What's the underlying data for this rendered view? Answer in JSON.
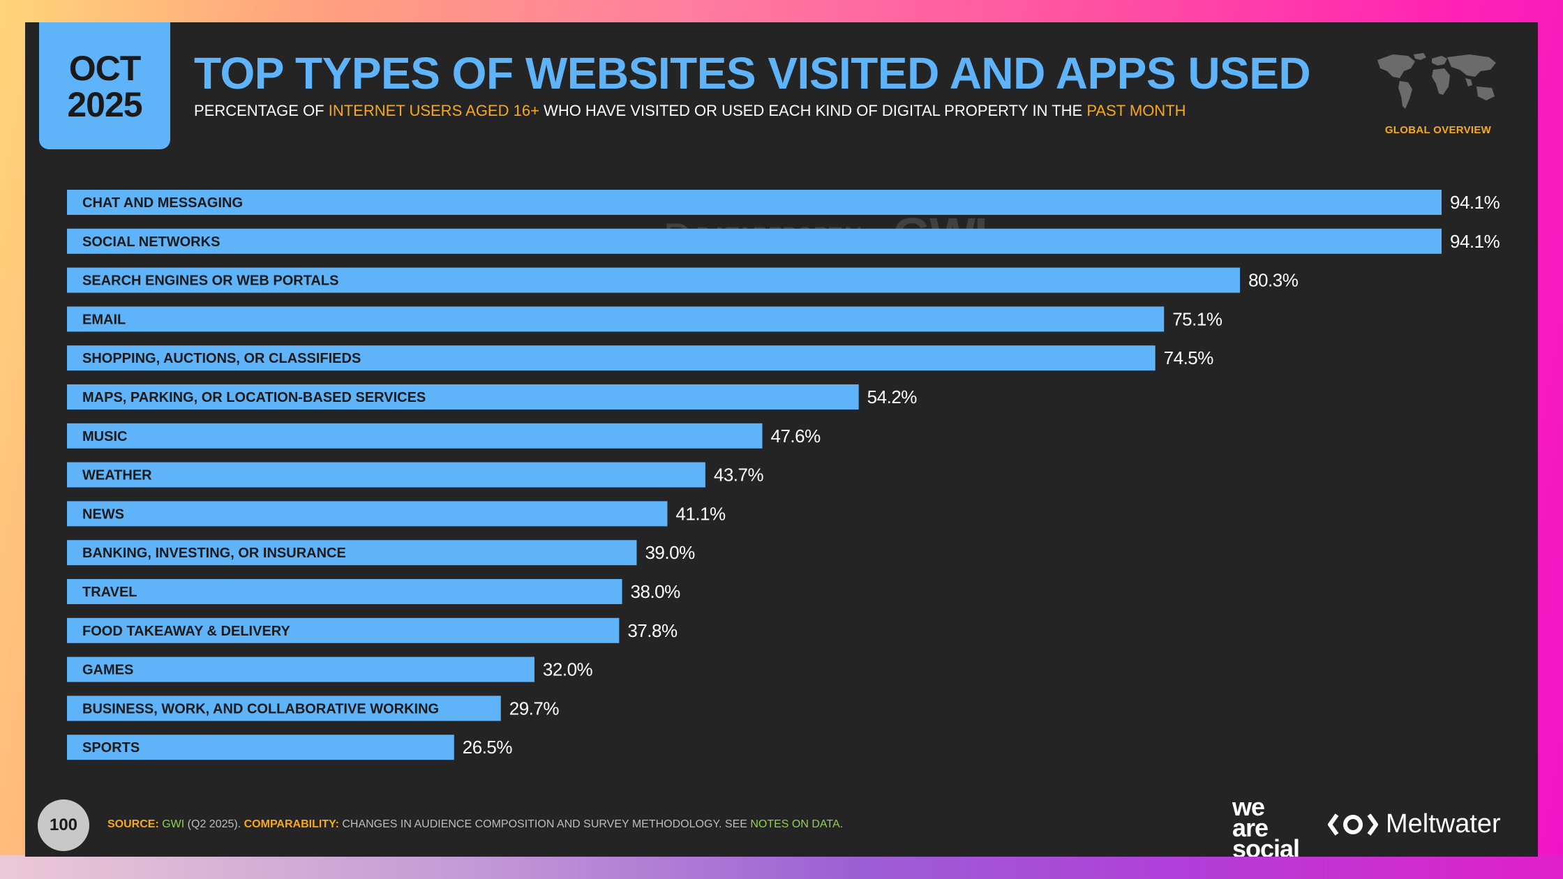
{
  "header": {
    "date_month": "OCT",
    "date_year": "2025",
    "title": "TOP TYPES OF WEBSITES VISITED AND APPS USED",
    "subtitle_parts": [
      "PERCENTAGE OF ",
      "INTERNET USERS AGED 16+",
      " WHO HAVE VISITED OR USED EACH KIND OF DIGITAL PROPERTY IN THE ",
      "PAST MONTH"
    ],
    "region_label": "GLOBAL OVERVIEW"
  },
  "watermark": {
    "left": "DATAREPORTAL",
    "right": "GWI."
  },
  "chart_data": {
    "type": "bar",
    "orientation": "horizontal",
    "title": "TOP TYPES OF WEBSITES VISITED AND APPS USED",
    "categories": [
      "CHAT AND MESSAGING",
      "SOCIAL NETWORKS",
      "SEARCH ENGINES OR WEB PORTALS",
      "EMAIL",
      "SHOPPING, AUCTIONS, OR CLASSIFIEDS",
      "MAPS, PARKING, OR LOCATION-BASED SERVICES",
      "MUSIC",
      "WEATHER",
      "NEWS",
      "BANKING, INVESTING, OR INSURANCE",
      "TRAVEL",
      "FOOD TAKEAWAY & DELIVERY",
      "GAMES",
      "BUSINESS, WORK, AND COLLABORATIVE WORKING",
      "SPORTS"
    ],
    "values": [
      94.1,
      94.1,
      80.3,
      75.1,
      74.5,
      54.2,
      47.6,
      43.7,
      41.1,
      39.0,
      38.0,
      37.8,
      32.0,
      29.7,
      26.5
    ],
    "value_labels": [
      "94.1%",
      "94.1%",
      "80.3%",
      "75.1%",
      "74.5%",
      "54.2%",
      "47.6%",
      "43.7%",
      "41.1%",
      "39.0%",
      "38.0%",
      "37.8%",
      "32.0%",
      "29.7%",
      "26.5%"
    ],
    "xlim": [
      0,
      100
    ],
    "grid": false,
    "legend": "none",
    "bar_color": "#5fb3f9"
  },
  "footer": {
    "page_number": "100",
    "source_label": "SOURCE:",
    "source_name": "GWI",
    "source_period": " (Q2 2025). ",
    "comparability_label": "COMPARABILITY:",
    "comparability_text": " CHANGES IN AUDIENCE COMPOSITION AND SURVEY METHODOLOGY. SEE ",
    "notes_link": "NOTES ON DATA",
    "notes_end": "."
  },
  "logos": {
    "we_are_social": [
      "we",
      "are",
      "social"
    ],
    "meltwater": "Meltwater"
  },
  "colors": {
    "accent_blue": "#5fb3f9",
    "accent_orange": "#f7a91d",
    "accent_green": "#8fd14f",
    "background": "#242424"
  }
}
